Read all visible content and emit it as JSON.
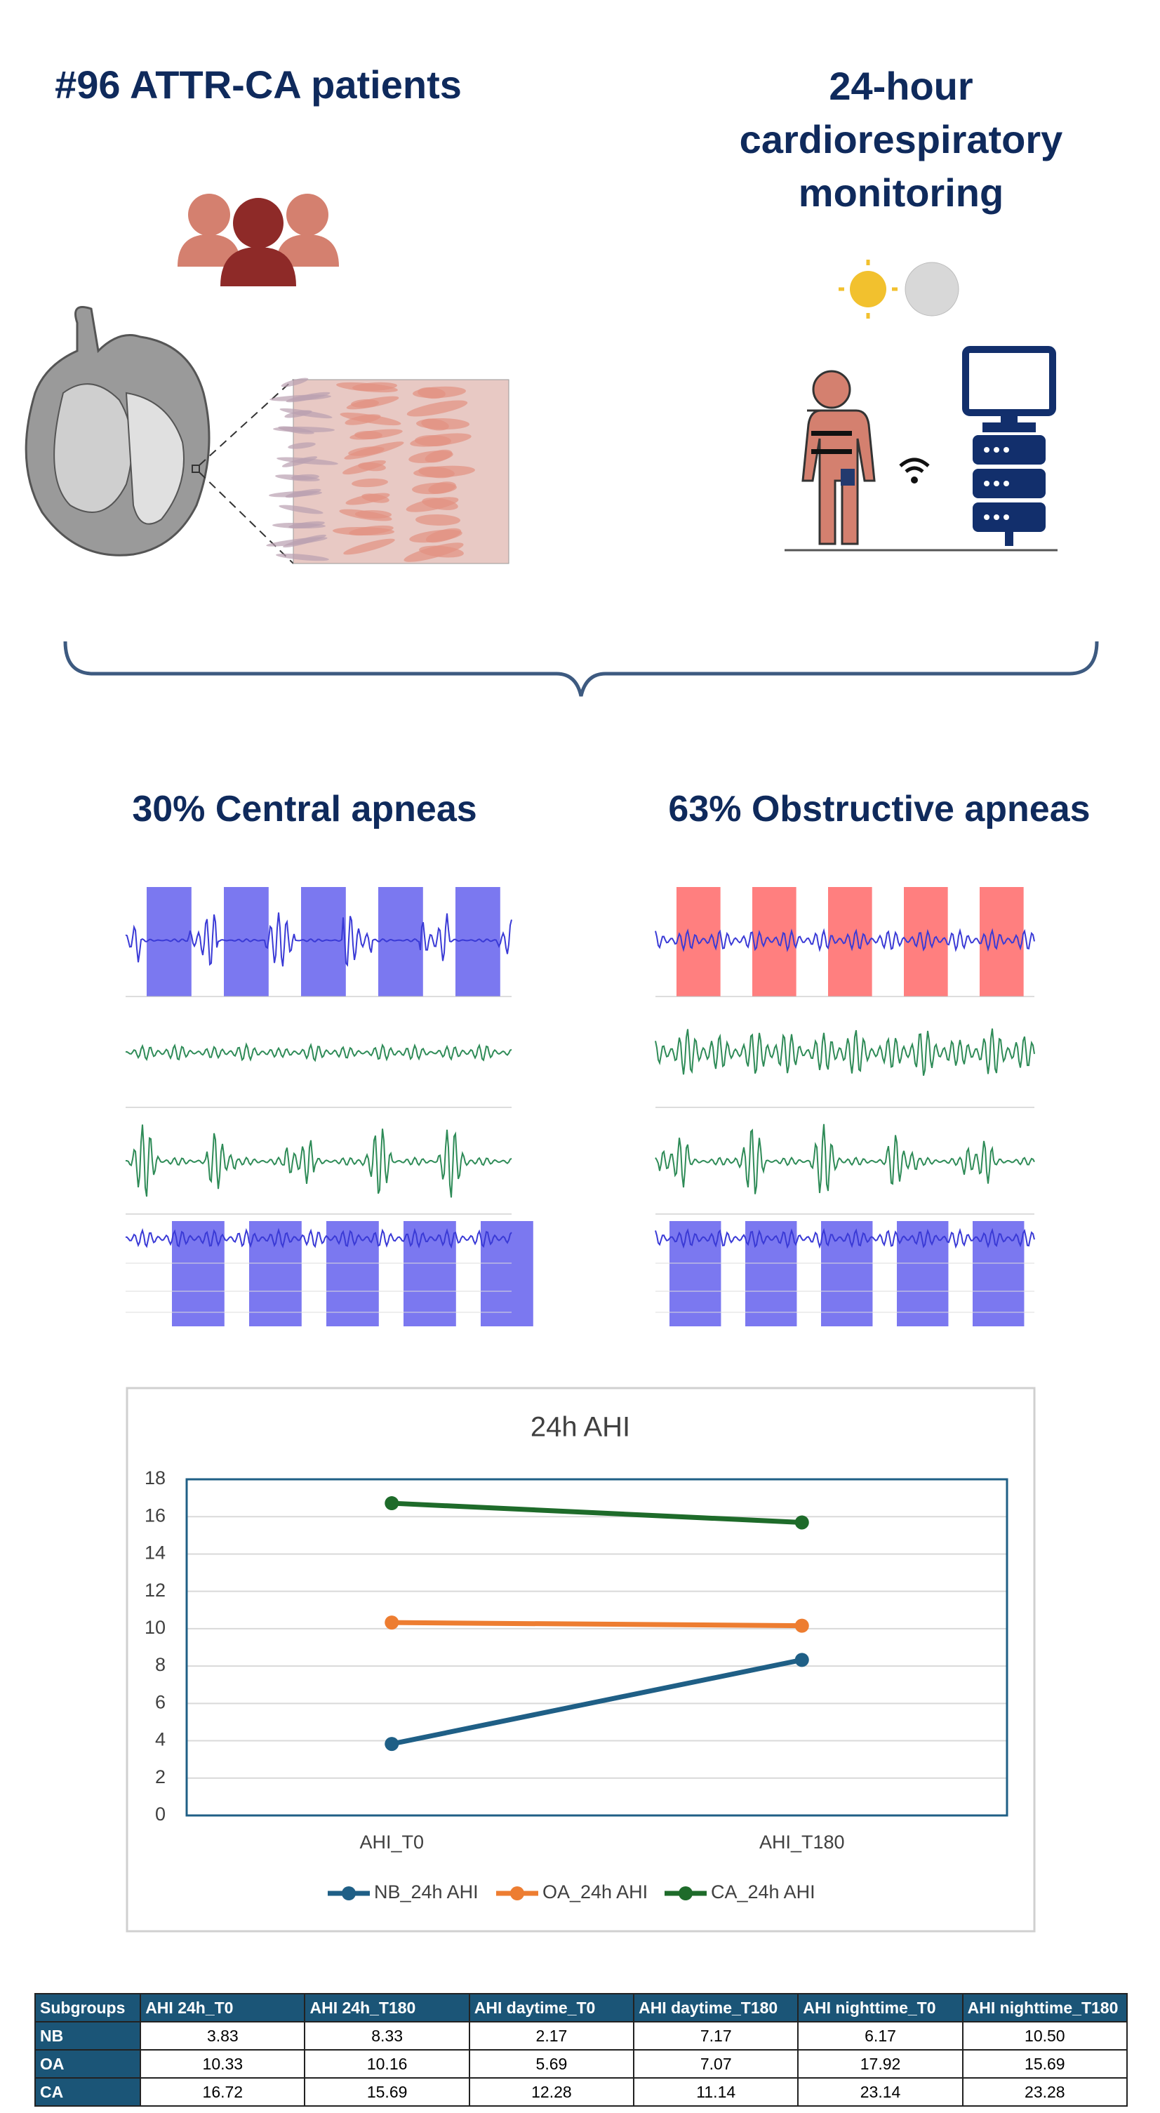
{
  "header": {
    "left_title": "#96 ATTR-CA patients",
    "right_title": [
      "24-hour",
      "cardiorespiratory",
      "monitoring"
    ]
  },
  "sections": {
    "central": "30% Central apneas",
    "obstructive": "63% Obstructive apneas"
  },
  "chart_data": {
    "type": "line",
    "title": "24h AHI",
    "categories": [
      "AHI_T0",
      "AHI_T180"
    ],
    "series": [
      {
        "name": "NB_24h AHI",
        "color": "#1f5f86",
        "values": [
          3.83,
          8.33
        ]
      },
      {
        "name": "OA_24h AHI",
        "color": "#ed7d31",
        "values": [
          10.33,
          10.16
        ]
      },
      {
        "name": "CA_24h AHI",
        "color": "#1e6b2a",
        "values": [
          16.72,
          15.69
        ]
      }
    ],
    "ylim": [
      0,
      18
    ],
    "yticks": [
      0,
      2,
      4,
      6,
      8,
      10,
      12,
      14,
      16,
      18
    ],
    "grid": true,
    "legend": "bottom"
  },
  "table": {
    "columns": [
      "Subgroups",
      "AHI 24h_T0",
      "AHI 24h_T180",
      "AHI daytime_T0",
      "AHI daytime_T180",
      "AHI nighttime_T0",
      "AHI nighttime_T180"
    ],
    "rows": [
      [
        "NB",
        "3.83",
        "8.33",
        "2.17",
        "7.17",
        "6.17",
        "10.50"
      ],
      [
        "OA",
        "10.33",
        "10.16",
        "5.69",
        "7.07",
        "17.92",
        "15.69"
      ],
      [
        "CA",
        "16.72",
        "15.69",
        "12.28",
        "11.14",
        "23.14",
        "23.28"
      ]
    ]
  }
}
